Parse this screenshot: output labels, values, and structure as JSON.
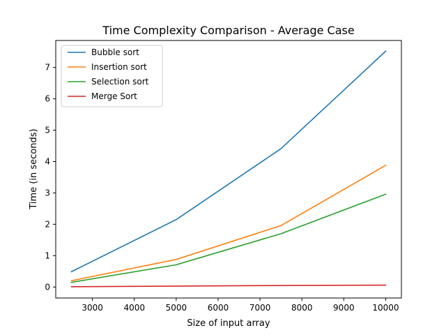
{
  "chart_data": {
    "type": "line",
    "title": "Time Complexity Comparison - Average Case",
    "xlabel": "Size of input array",
    "ylabel": "Time (in seconds)",
    "x": [
      2500,
      5000,
      7500,
      10000
    ],
    "xlim": [
      2125,
      10375
    ],
    "ylim": [
      -0.35,
      7.86
    ],
    "xticks": [
      3000,
      4000,
      5000,
      6000,
      7000,
      8000,
      9000,
      10000
    ],
    "yticks": [
      0,
      1,
      2,
      3,
      4,
      5,
      6,
      7
    ],
    "xtick_labels": [
      "3000",
      "4000",
      "5000",
      "6000",
      "7000",
      "8000",
      "9000",
      "10000"
    ],
    "ytick_labels": [
      "0",
      "1",
      "2",
      "3",
      "4",
      "5",
      "6",
      "7"
    ],
    "grid": false,
    "legend_position": "top-left",
    "series": [
      {
        "name": "Bubble sort",
        "color": "#1f77b4",
        "values": [
          0.49,
          2.15,
          4.41,
          7.52
        ]
      },
      {
        "name": "Insertion sort",
        "color": "#ff7f0e",
        "values": [
          0.2,
          0.88,
          1.96,
          3.88
        ]
      },
      {
        "name": "Selection sort",
        "color": "#2ca02c",
        "values": [
          0.15,
          0.71,
          1.7,
          2.96
        ]
      },
      {
        "name": "Merge Sort",
        "color": "#d62728",
        "values": [
          0.01,
          0.03,
          0.05,
          0.06
        ]
      }
    ]
  }
}
